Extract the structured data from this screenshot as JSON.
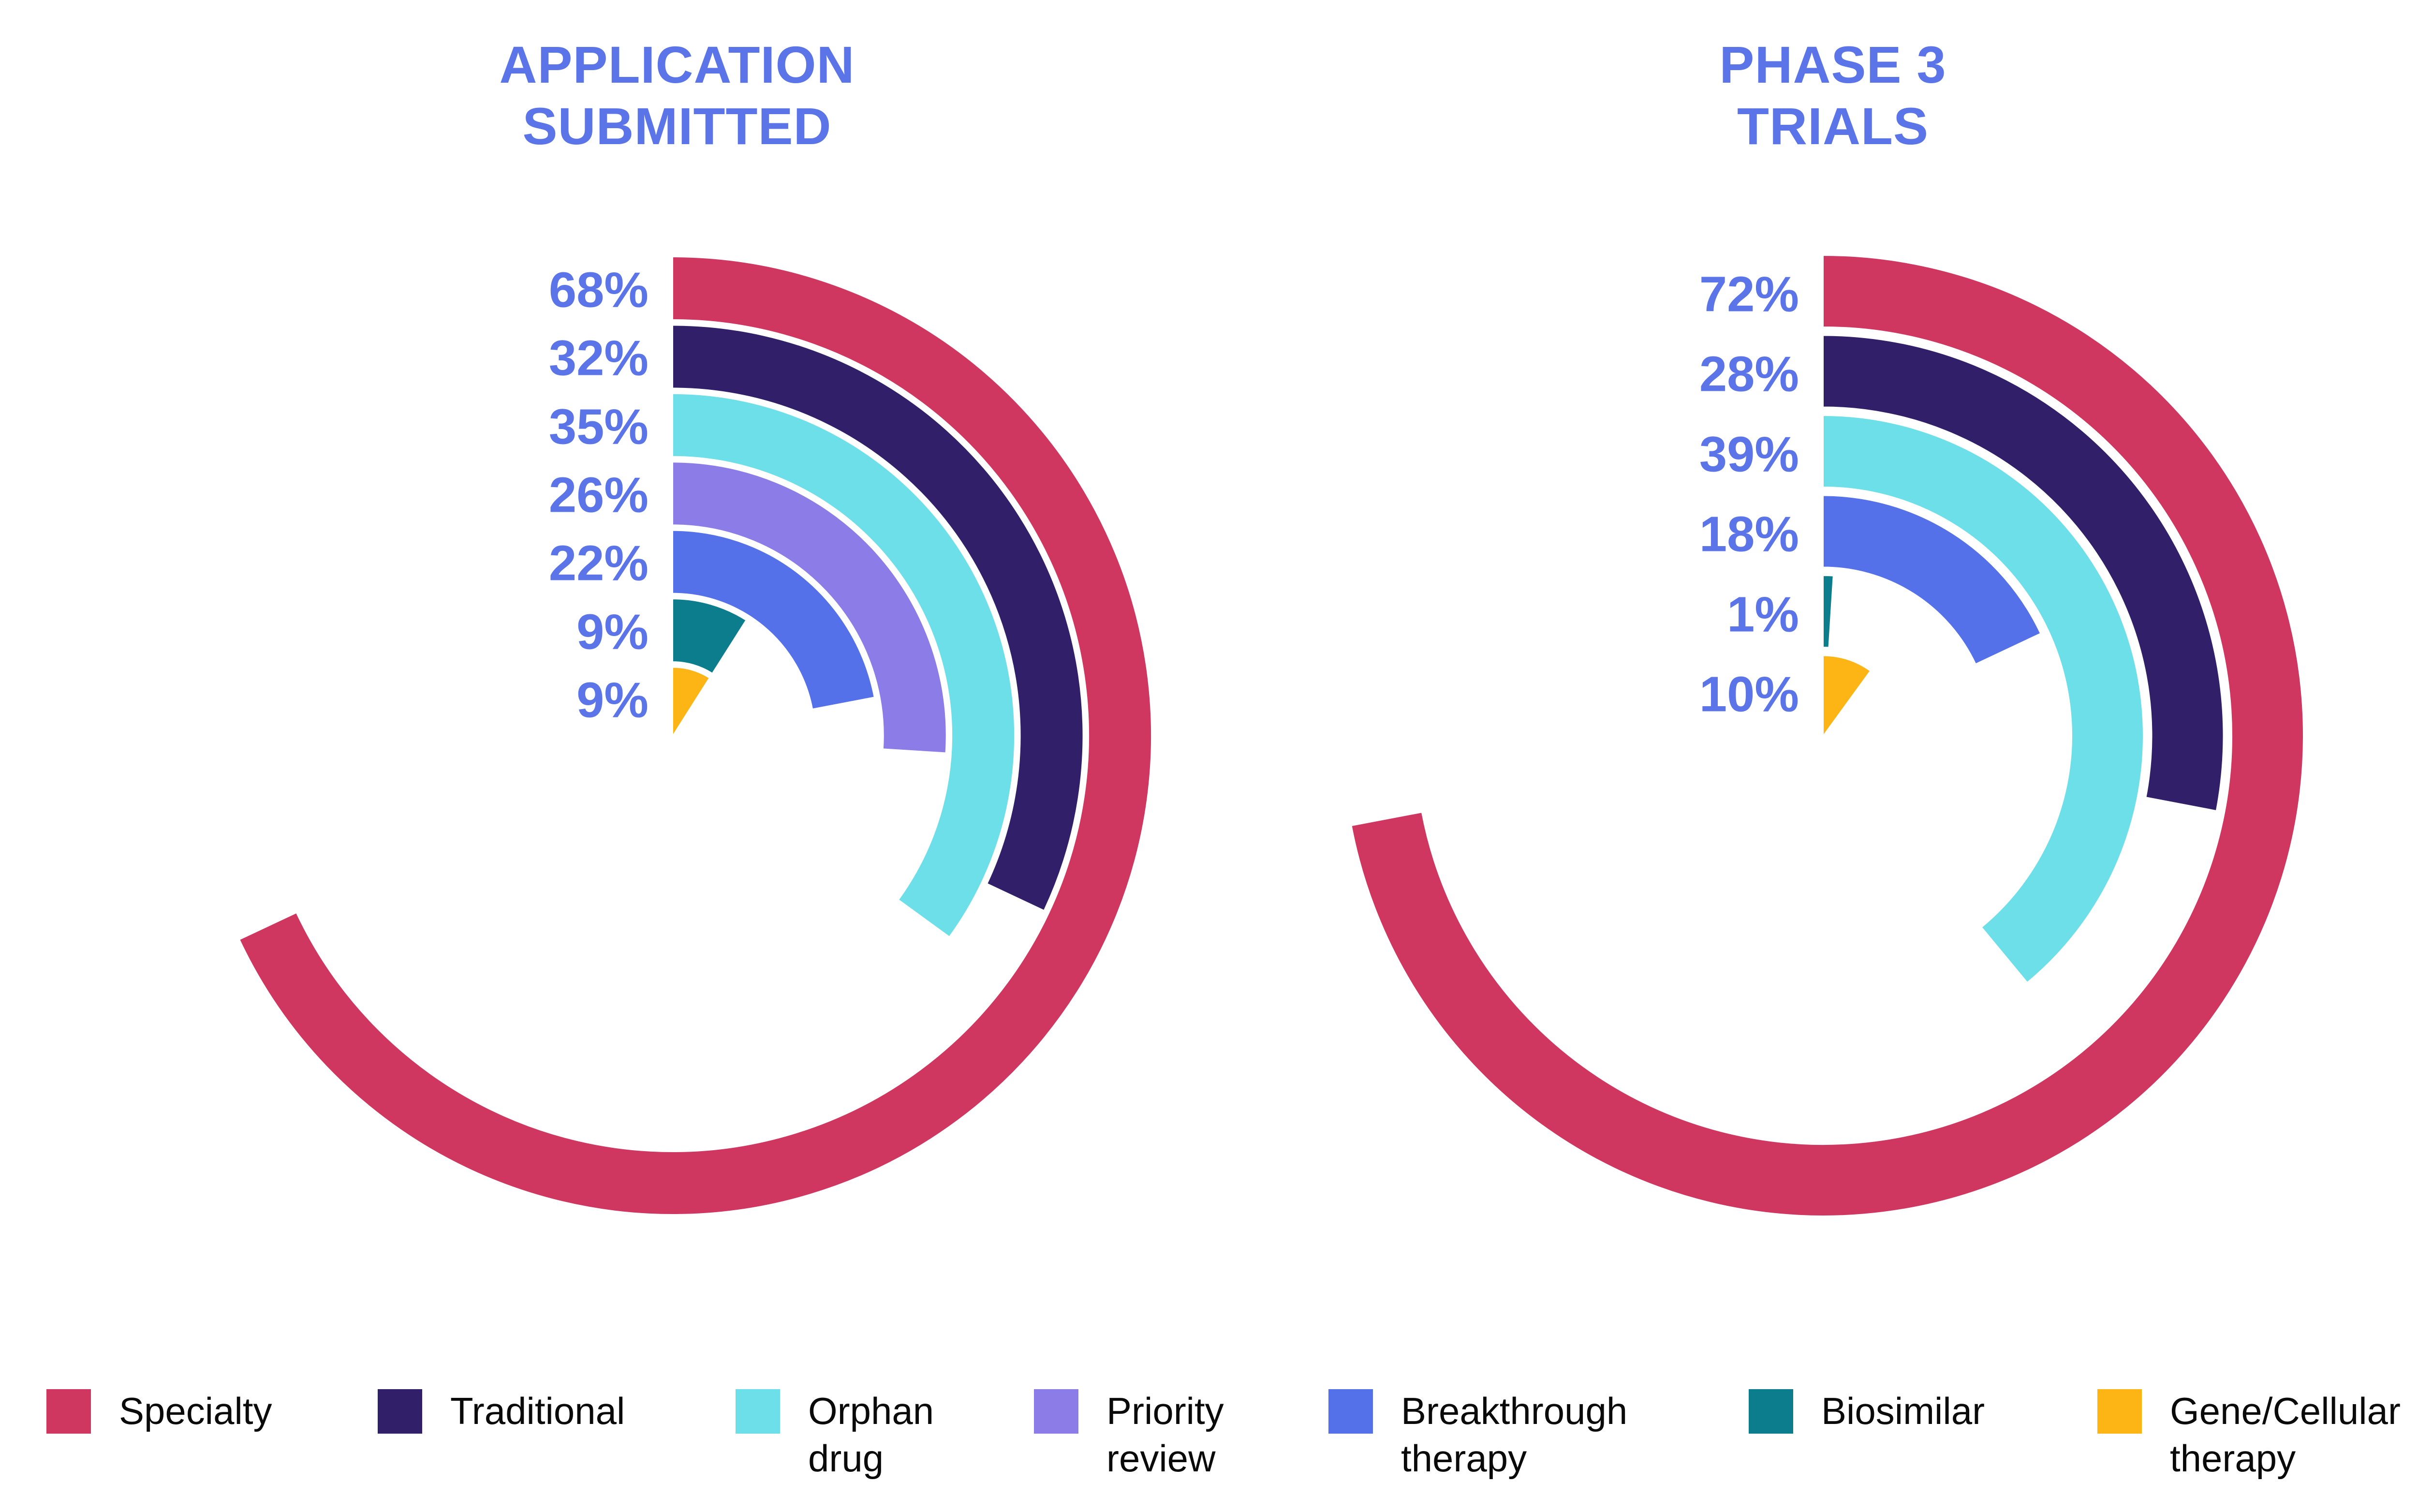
{
  "colors": {
    "Specialty": "#cf3660",
    "Traditional": "#312069",
    "Orphan drug": "#6cdfe8",
    "Priority review": "#8b7ce8",
    "Breakthrough therapy": "#5571ea",
    "Biosimilar": "#0b7d8d",
    "Gene/Cellular therapy": "#fcb515",
    "accent_text": "#5b75e8",
    "legend_text": "#0a0a0a",
    "background": "#ffffff"
  },
  "chart_data": [
    {
      "type": "radial_bar",
      "title": "APPLICATION SUBMITTED",
      "title_lines": [
        "APPLICATION",
        "SUBMITTED"
      ],
      "start_angle_deg": 0,
      "direction": "clockwise",
      "angle_scale": "percent_of_360",
      "legend_position": "bottom",
      "categories": [
        "Specialty",
        "Traditional",
        "Orphan drug",
        "Priority review",
        "Breakthrough therapy",
        "Biosimilar",
        "Gene/Cellular therapy"
      ],
      "values": [
        68,
        32,
        35,
        26,
        22,
        9,
        9
      ],
      "labels": [
        "68%",
        "32%",
        "35%",
        "26%",
        "22%",
        "9%",
        "9%"
      ]
    },
    {
      "type": "radial_bar",
      "title": "PHASE 3 TRIALS",
      "title_lines": [
        "PHASE 3",
        "TRIALS"
      ],
      "start_angle_deg": 0,
      "direction": "clockwise",
      "angle_scale": "percent_of_360",
      "legend_position": "bottom",
      "categories": [
        "Specialty",
        "Traditional",
        "Orphan drug",
        "Breakthrough therapy",
        "Biosimilar",
        "Gene/Cellular therapy"
      ],
      "values": [
        72,
        28,
        39,
        18,
        1,
        10
      ],
      "labels": [
        "72%",
        "28%",
        "39%",
        "18%",
        "1%",
        "10%"
      ]
    }
  ],
  "legend": {
    "items": [
      {
        "category": "Specialty",
        "label": "Specialty",
        "label_lines": [
          "Specialty"
        ]
      },
      {
        "category": "Traditional",
        "label": "Traditional",
        "label_lines": [
          "Traditional"
        ]
      },
      {
        "category": "Orphan drug",
        "label": "Orphan drug",
        "label_lines": [
          "Orphan",
          "drug"
        ]
      },
      {
        "category": "Priority review",
        "label": "Priority review",
        "label_lines": [
          "Priority",
          "review"
        ]
      },
      {
        "category": "Breakthrough therapy",
        "label": "Breakthrough therapy",
        "label_lines": [
          "Breakthrough",
          "therapy"
        ]
      },
      {
        "category": "Biosimilar",
        "label": "Biosimilar",
        "label_lines": [
          "Biosimilar"
        ]
      },
      {
        "category": "Gene/Cellular therapy",
        "label": "Gene/Cellular therapy",
        "label_lines": [
          "Gene/Cellular",
          "therapy"
        ]
      }
    ]
  }
}
